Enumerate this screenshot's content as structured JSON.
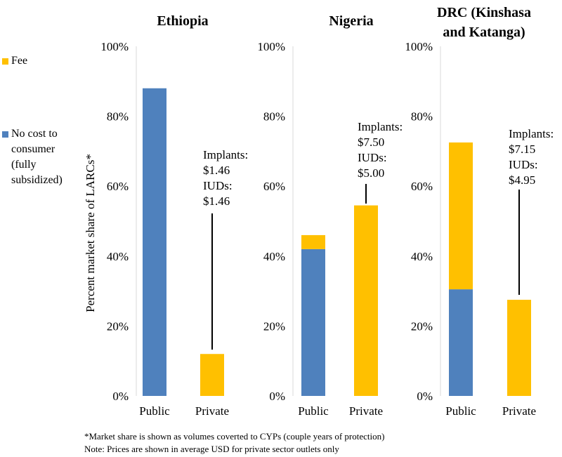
{
  "colors": {
    "fee": "#FFC000",
    "no_cost": "#4F81BD",
    "axis": "#D9D9D9",
    "text": "#000000"
  },
  "legend": [
    {
      "key": "fee",
      "label": "Fee"
    },
    {
      "key": "no_cost",
      "label": "No cost to\nconsumer\n(fully\nsubsidized)"
    }
  ],
  "footnotes": {
    "line1": "*Market share is shown as volumes coverted to CYPs (couple years of protection)",
    "line2": "Note: Prices are shown in average USD for private sector outlets only"
  },
  "chart_data": {
    "type": "bar",
    "stacked": true,
    "ylabel": "Percent market share of LARCs*",
    "ylim": [
      0,
      100
    ],
    "ytick_labels": [
      "0%",
      "20%",
      "40%",
      "60%",
      "80%",
      "100%"
    ],
    "categories": [
      "Public",
      "Private"
    ],
    "series_names": [
      "No cost to consumer (fully subsidized)",
      "Fee"
    ],
    "panels": [
      {
        "title": [
          "Ethiopia"
        ],
        "bars": [
          {
            "category": "Public",
            "no_cost": 88,
            "fee": 0
          },
          {
            "category": "Private",
            "no_cost": 0,
            "fee": 12
          }
        ],
        "annotation": {
          "lines": [
            "Implants:",
            "$1.46",
            "IUDs:",
            "$1.46"
          ],
          "bar": "Private"
        }
      },
      {
        "title": [
          "Nigeria"
        ],
        "bars": [
          {
            "category": "Public",
            "no_cost": 42,
            "fee": 4
          },
          {
            "category": "Private",
            "no_cost": 0,
            "fee": 54.5
          }
        ],
        "annotation": {
          "lines": [
            "Implants:",
            "$7.50",
            "IUDs:",
            "$5.00"
          ],
          "bar": "Private"
        }
      },
      {
        "title": [
          "DRC (Kinshasa",
          "and Katanga)"
        ],
        "bars": [
          {
            "category": "Public",
            "no_cost": 30.5,
            "fee": 42
          },
          {
            "category": "Private",
            "no_cost": 0,
            "fee": 27.5
          }
        ],
        "annotation": {
          "lines": [
            "Implants:",
            "$7.15",
            "IUDs:",
            "$4.95"
          ],
          "bar": "Private"
        }
      }
    ]
  }
}
